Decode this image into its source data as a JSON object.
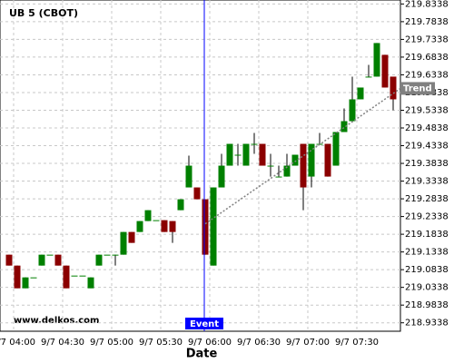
{
  "chart_data": {
    "type": "candlestick",
    "title": "UB 5 (CBOT)",
    "x_label": "Date",
    "watermark": "www.delkos.com",
    "categories": [
      "9/7 04:00",
      null,
      null,
      null,
      null,
      null,
      "9/7 04:30",
      null,
      null,
      null,
      null,
      null,
      "9/7 05:00",
      null,
      null,
      null,
      null,
      null,
      "9/7 05:30",
      null,
      null,
      null,
      null,
      null,
      "9/7 06:00",
      null,
      null,
      null,
      null,
      null,
      "9/7 06:30",
      null,
      null,
      null,
      null,
      null,
      "9/7 07:00",
      null,
      null,
      null,
      null,
      null,
      "9/7 07:30",
      null,
      null,
      null,
      null,
      null
    ],
    "open": [
      219.1261,
      219.0953,
      219.0312,
      219.062,
      219.0953,
      219.1261,
      219.1261,
      219.0953,
      219.0671,
      219.0671,
      219.0312,
      219.0953,
      219.1261,
      219.1261,
      219.1261,
      219.1902,
      219.1902,
      219.221,
      219.2235,
      219.2235,
      219.221,
      219.2517,
      219.3159,
      219.3159,
      219.2825,
      219.0953,
      219.3159,
      219.3774,
      219.4082,
      219.3774,
      219.4389,
      219.4389,
      219.3774,
      219.3466,
      219.3466,
      219.3774,
      219.4389,
      219.3466,
      219.4389,
      219.4389,
      219.3774,
      219.4723,
      219.503,
      219.5646,
      219.6287,
      219.6287,
      219.6902,
      219.6287
    ],
    "high": [
      219.1261,
      219.0953,
      219.062,
      219.062,
      219.1261,
      219.1261,
      219.1261,
      219.0953,
      219.0671,
      219.0671,
      219.062,
      219.1261,
      219.1261,
      219.1261,
      219.1902,
      219.1902,
      219.221,
      219.2517,
      219.2235,
      219.2235,
      219.221,
      219.2825,
      219.4056,
      219.3159,
      219.2825,
      219.3159,
      219.4107,
      219.4389,
      219.4389,
      219.4389,
      219.4697,
      219.4389,
      219.4107,
      219.3774,
      219.4107,
      219.4082,
      219.4389,
      219.4389,
      219.4697,
      219.4389,
      219.4723,
      219.5389,
      219.6287,
      219.5979,
      219.662,
      219.7235,
      219.6902,
      219.6287
    ],
    "low": [
      219.0953,
      219.0312,
      219.0312,
      219.062,
      219.0953,
      219.1261,
      219.0953,
      219.0312,
      219.0671,
      219.0671,
      219.0312,
      219.0953,
      219.1261,
      219.0953,
      219.1261,
      219.1594,
      219.1902,
      219.221,
      219.2235,
      219.1902,
      219.1594,
      219.2517,
      219.3159,
      219.2825,
      219.1261,
      219.0953,
      219.3159,
      219.3774,
      219.3774,
      219.3774,
      219.4107,
      219.3774,
      219.3466,
      219.3466,
      219.3466,
      219.3774,
      219.2517,
      219.3159,
      219.4389,
      219.3466,
      219.3774,
      219.4723,
      219.503,
      219.5646,
      219.6287,
      219.6287,
      219.5979,
      219.5338
    ],
    "close": [
      219.0953,
      219.0312,
      219.062,
      219.062,
      219.1261,
      219.1261,
      219.0953,
      219.0312,
      219.0671,
      219.0671,
      219.062,
      219.1261,
      219.1261,
      219.1261,
      219.1902,
      219.1594,
      219.221,
      219.2517,
      219.2235,
      219.1902,
      219.1902,
      219.2825,
      219.3774,
      219.2825,
      219.1261,
      219.3159,
      219.3774,
      219.4389,
      219.4082,
      219.4389,
      219.4389,
      219.3774,
      219.3774,
      219.3466,
      219.3774,
      219.4082,
      219.3159,
      219.4389,
      219.4389,
      219.3466,
      219.4723,
      219.503,
      219.5646,
      219.5979,
      219.6287,
      219.7235,
      219.5979,
      219.5646
    ],
    "up_color": "#008000",
    "down_color": "#8b0000",
    "ylim": [
      218.91,
      219.845
    ],
    "yticks": [
      218.9338,
      218.9838,
      219.0338,
      219.0838,
      219.1338,
      219.1838,
      219.2338,
      219.2838,
      219.3338,
      219.3838,
      219.4338,
      219.4838,
      219.5338,
      219.5838,
      219.6338,
      219.6838,
      219.7338,
      219.7838,
      219.8338
    ],
    "grid": true,
    "event": {
      "label": "Event",
      "index": 24,
      "color": "#0000ff"
    },
    "trend": {
      "label": "Trend",
      "x": [
        24,
        48
      ],
      "values": [
        219.2132,
        219.5954
      ],
      "color": "#808080"
    }
  }
}
